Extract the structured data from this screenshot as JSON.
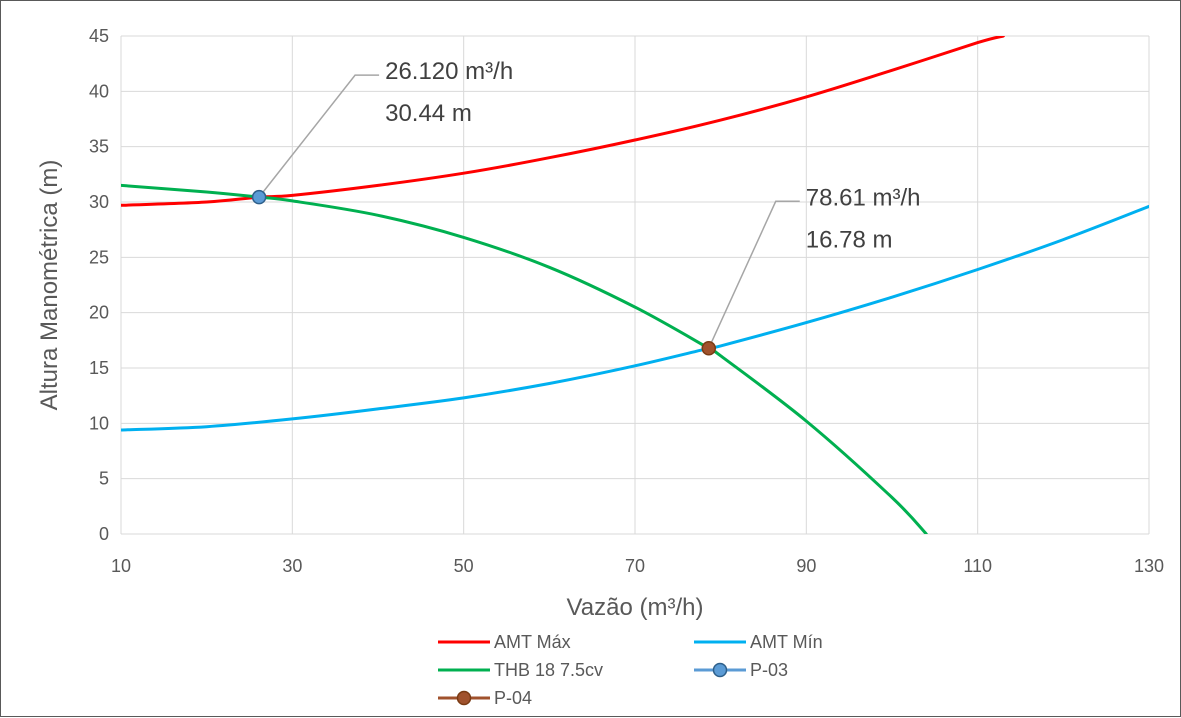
{
  "chart_data": {
    "type": "line",
    "xlabel": "Vazão (m³/h)",
    "ylabel": "Altura Manométrica (m)",
    "xlim": [
      10,
      130
    ],
    "ylim": [
      0,
      45
    ],
    "x_ticks": [
      "10",
      "30",
      "50",
      "70",
      "90",
      "110",
      "130"
    ],
    "y_ticks": [
      "0",
      "5",
      "10",
      "15",
      "20",
      "25",
      "30",
      "35",
      "40",
      "45"
    ],
    "grid": "horizontal and vertical",
    "legend_position": "bottom",
    "series": [
      {
        "name": "AMT Máx",
        "color": "#ff0000",
        "x": [
          10,
          20,
          26.12,
          30,
          40,
          50,
          60,
          70,
          80,
          90,
          100,
          110,
          113
        ],
        "y": [
          29.7,
          30.0,
          30.44,
          30.6,
          31.5,
          32.6,
          34.0,
          35.6,
          37.4,
          39.5,
          41.9,
          44.4,
          45.0
        ]
      },
      {
        "name": "AMT Mín",
        "color": "#00b0f0",
        "x": [
          10,
          20,
          30,
          40,
          50,
          60,
          70,
          78.61,
          80,
          90,
          100,
          110,
          120,
          130
        ],
        "y": [
          9.4,
          9.7,
          10.4,
          11.3,
          12.3,
          13.6,
          15.2,
          16.78,
          17.0,
          19.1,
          21.4,
          23.9,
          26.6,
          29.6
        ]
      },
      {
        "name": "THB 18 7.5cv",
        "color": "#00b050",
        "x": [
          10,
          20,
          26.12,
          30,
          40,
          50,
          60,
          70,
          78.61,
          80,
          90,
          100,
          104
        ],
        "y": [
          31.5,
          30.9,
          30.44,
          30.1,
          28.8,
          26.8,
          24.1,
          20.5,
          16.78,
          16.1,
          10.2,
          3.3,
          0
        ]
      },
      {
        "name": "P-03",
        "color": "#5b9bd5",
        "outline": "#2e5f8a",
        "marker": "circle",
        "x": [
          26.12
        ],
        "y": [
          30.44
        ]
      },
      {
        "name": "P-04",
        "color": "#a0522d",
        "outline": "#7a3b14",
        "marker": "circle",
        "x": [
          78.61
        ],
        "y": [
          16.78
        ]
      }
    ],
    "annotations": [
      {
        "series": "P-03",
        "lines": [
          "26.120 m³/h",
          "30.44 m"
        ]
      },
      {
        "series": "P-04",
        "lines": [
          "78.61 m³/h",
          "16.78 m"
        ]
      }
    ]
  }
}
